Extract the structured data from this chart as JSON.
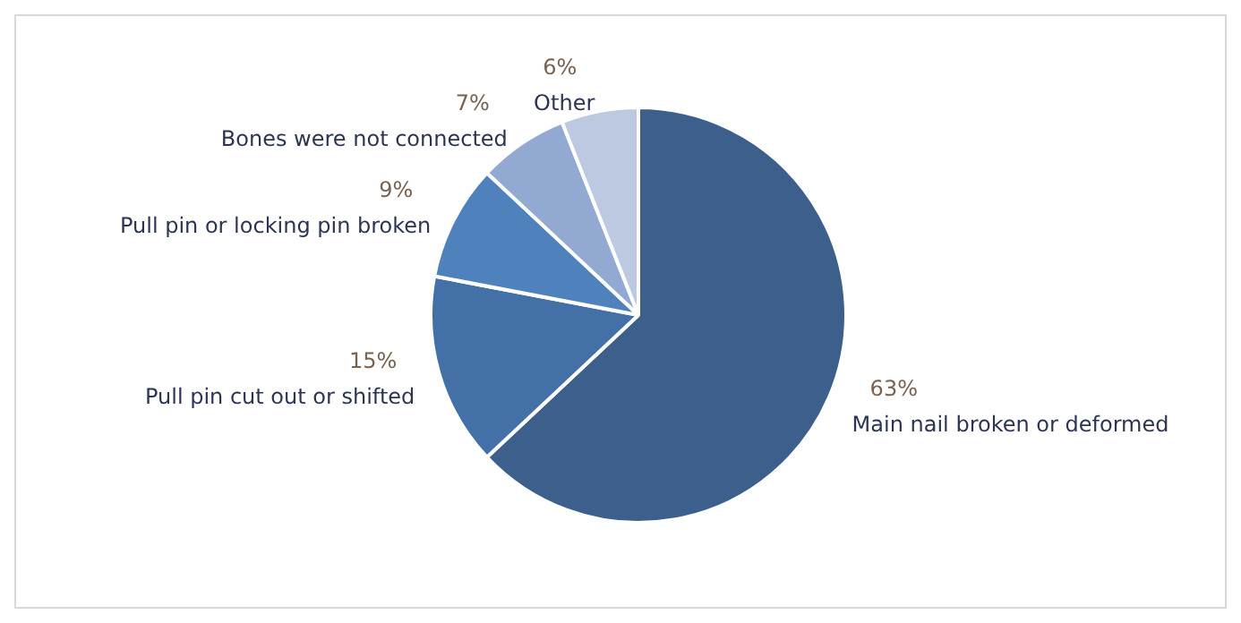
{
  "chart_data": {
    "type": "pie",
    "categories": [
      "Main nail broken or deformed",
      "Pull pin cut out or shifted",
      "Pull pin or locking pin broken",
      "Bones were not connected",
      "Other"
    ],
    "values": [
      63,
      15,
      9,
      7,
      6
    ],
    "colors": [
      "#3d5f8c",
      "#4470a8",
      "#4f81bd",
      "#92a9d1",
      "#bcc9e1"
    ],
    "value_labels": [
      "63%",
      "15%",
      "9%",
      "7%",
      "6%"
    ],
    "legend": false
  }
}
